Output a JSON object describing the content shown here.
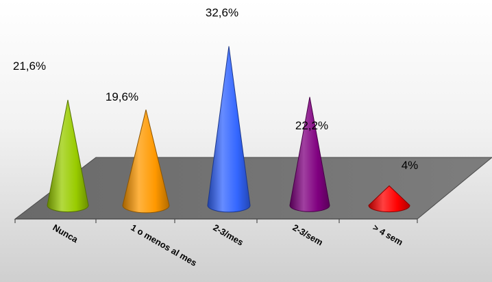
{
  "chart_data": {
    "type": "bar",
    "title": "",
    "xlabel": "",
    "ylabel": "",
    "categories": [
      "Nunca",
      "1 o menos al mes",
      "2-3/mes",
      "2-3/sem",
      "> 4 sem"
    ],
    "values": [
      21.6,
      19.6,
      32.6,
      22.2,
      4
    ],
    "value_labels": [
      "21,6%",
      "19,6%",
      "32,6%",
      "22,2%",
      "4%"
    ],
    "colors": [
      "#99cc00",
      "#ff9900",
      "#3366ff",
      "#800080",
      "#ff0000"
    ],
    "unit": "%",
    "grid": false,
    "legend": "none"
  }
}
